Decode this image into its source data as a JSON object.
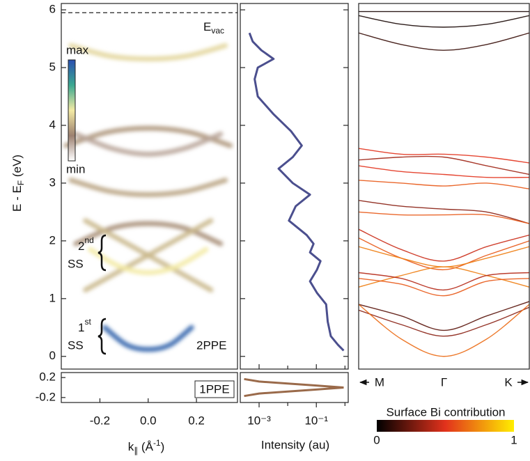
{
  "chart_data": [
    {
      "type": "heatmap",
      "y_label": [
        "E - E",
        "F",
        " (eV)"
      ],
      "x_label": [
        "k",
        "∥",
        " (Å",
        "-1",
        ")"
      ],
      "ylim": [
        -0.22,
        6.11
      ],
      "yticks": [
        0,
        1,
        2,
        3,
        4,
        5,
        6
      ],
      "xlim": [
        -0.36,
        0.37
      ],
      "xticks": [
        -0.2,
        {
          "value": 0,
          "label": "0.0"
        },
        0.2
      ],
      "vacuum_level": 5.95,
      "annotations": {
        "vacuum": [
          "E",
          "vac"
        ],
        "second_ss": [
          "2",
          "nd",
          "SS"
        ],
        "first_ss": [
          "1",
          "st",
          "SS"
        ],
        "mode": "2PPE"
      },
      "colorbar": {
        "max": "max",
        "min": "min",
        "colors": [
          "#ffffff",
          "#9c8070",
          "#f3eaa4",
          "#3aa890",
          "#2a4fb0"
        ]
      },
      "features": [
        {
          "k": [
            -0.32,
            -0.16,
            0,
            0.16,
            0.32
          ],
          "E": [
            5.38,
            5.2,
            5.15,
            5.2,
            5.38
          ],
          "intensity": 0.45
        },
        {
          "k": [
            -0.34,
            -0.17,
            0,
            0.17,
            0.34
          ],
          "E": [
            3.65,
            3.88,
            3.95,
            3.88,
            3.65
          ],
          "intensity": 0.3
        },
        {
          "k": [
            -0.3,
            -0.15,
            0,
            0.15,
            0.3
          ],
          "E": [
            3.85,
            3.6,
            3.5,
            3.6,
            3.85
          ],
          "intensity": 0.18
        },
        {
          "k": [
            -0.32,
            -0.16,
            0,
            0.16,
            0.32
          ],
          "E": [
            3.05,
            2.86,
            2.8,
            2.86,
            3.05
          ],
          "intensity": 0.33
        },
        {
          "k": [
            -0.3,
            -0.15,
            0,
            0.15,
            0.3
          ],
          "E": [
            1.95,
            2.22,
            2.3,
            2.22,
            1.95
          ],
          "intensity": 0.28
        },
        {
          "k": [
            -0.26,
            -0.13,
            0,
            0.13,
            0.26
          ],
          "E": [
            2.35,
            2.05,
            1.75,
            1.45,
            1.15
          ],
          "intensity": 0.38
        },
        {
          "k": [
            -0.26,
            -0.13,
            0,
            0.13,
            0.26
          ],
          "E": [
            1.15,
            1.45,
            1.75,
            2.05,
            2.35
          ],
          "intensity": 0.38
        },
        {
          "k": [
            -0.24,
            -0.12,
            0,
            0.12,
            0.24
          ],
          "E": [
            1.85,
            1.56,
            1.45,
            1.56,
            1.85
          ],
          "intensity": 0.5
        },
        {
          "k": [
            -0.18,
            -0.09,
            0,
            0.09,
            0.18
          ],
          "E": [
            0.5,
            0.2,
            0.12,
            0.2,
            0.5
          ],
          "intensity": 0.95
        }
      ],
      "inset": {
        "label": "1PPE",
        "ylim": [
          -0.3,
          0.3
        ],
        "yticks": [
          0.2,
          -0.2
        ],
        "feature": {
          "k": [
            -0.12,
            0,
            0.12
          ],
          "E": [
            -0.02,
            -0.02,
            -0.02
          ],
          "intensity": 0.85
        }
      }
    },
    {
      "type": "line",
      "x_label": "Intensity (au)",
      "xscale": "log",
      "xlim": [
        0.00022,
        1.3
      ],
      "xticks": [
        {
          "value": 0.001,
          "label": "10⁻³"
        },
        {
          "value": 0.1,
          "label": "10⁻¹"
        }
      ],
      "xminor": [
        0.01,
        1
      ],
      "ylim": [
        -0.22,
        6.11
      ],
      "ytick_marks": [
        0,
        1,
        2,
        3,
        4,
        5,
        6
      ],
      "series": [
        {
          "color": "#4b4f8e",
          "x": [
            0.00046,
            0.0006,
            0.0012,
            0.0032,
            0.0009,
            0.0007,
            0.0009,
            0.0031,
            0.013,
            0.031,
            0.015,
            0.0048,
            0.015,
            0.06,
            0.019,
            0.011,
            0.046,
            0.08,
            0.06,
            0.14,
            0.105,
            0.06,
            0.105,
            0.22,
            0.25,
            0.32,
            0.57,
            0.9
          ],
          "y": [
            5.6,
            5.45,
            5.3,
            5.15,
            5.0,
            4.8,
            4.5,
            4.2,
            3.9,
            3.65,
            3.45,
            3.25,
            3.0,
            2.8,
            2.6,
            2.35,
            2.1,
            1.95,
            1.8,
            1.65,
            1.5,
            1.3,
            1.1,
            0.9,
            0.6,
            0.35,
            0.2,
            0.1
          ]
        }
      ],
      "inset": {
        "ylim": [
          -0.3,
          0.3
        ],
        "series": [
          {
            "color": "#9a6a4a",
            "x": [
              0.0003,
              0.001,
              0.01,
              0.1,
              0.9
            ],
            "y": [
              0.17,
              0.12,
              0.08,
              0.04,
              0.0
            ]
          },
          {
            "color": "#9a6a4a",
            "x": [
              0.0003,
              0.001,
              0.01,
              0.1,
              0.9
            ],
            "y": [
              -0.17,
              -0.12,
              -0.08,
              -0.04,
              0.0
            ]
          }
        ]
      }
    },
    {
      "type": "band_structure",
      "k_points": [
        "M",
        "Γ",
        "K"
      ],
      "xlim": [
        -1,
        1
      ],
      "k": [
        -1,
        -0.5,
        0,
        0.5,
        1
      ],
      "ylim": [
        -0.22,
        6.11
      ],
      "colorbar": {
        "title": "Surface Bi contribution",
        "ticks": [
          0,
          1
        ],
        "colors": [
          "#000000",
          "#e2321c",
          "#ffee00"
        ]
      },
      "bands": [
        {
          "E": [
            5.97,
            5.97,
            5.97,
            5.97,
            5.97
          ],
          "contribution": 0.05
        },
        {
          "E": [
            5.9,
            5.75,
            5.7,
            5.75,
            5.9
          ],
          "contribution": 0.05
        },
        {
          "E": [
            5.6,
            5.4,
            5.3,
            5.4,
            5.6
          ],
          "contribution": 0.12
        },
        {
          "E": [
            3.6,
            3.5,
            3.5,
            3.45,
            3.35
          ],
          "contribution": 0.5
        },
        {
          "E": [
            3.4,
            3.45,
            3.45,
            3.3,
            3.15
          ],
          "contribution": 0.35
        },
        {
          "E": [
            3.3,
            3.2,
            3.15,
            3.1,
            3.1
          ],
          "contribution": 0.5
        },
        {
          "E": [
            3.05,
            3.0,
            2.95,
            3.0,
            2.9
          ],
          "contribution": 0.6
        },
        {
          "E": [
            2.7,
            2.6,
            2.55,
            2.5,
            2.3
          ],
          "contribution": 0.3
        },
        {
          "E": [
            2.5,
            2.45,
            2.45,
            2.45,
            2.3
          ],
          "contribution": 0.6
        },
        {
          "E": [
            2.2,
            1.85,
            1.65,
            1.9,
            2.1
          ],
          "contribution": 0.45
        },
        {
          "E": [
            2.05,
            1.7,
            1.5,
            1.75,
            2.0
          ],
          "contribution": 0.6
        },
        {
          "E": [
            1.9,
            1.7,
            1.55,
            1.7,
            1.9
          ],
          "contribution": 0.7
        },
        {
          "E": [
            1.2,
            1.4,
            1.55,
            1.4,
            1.2
          ],
          "contribution": 0.7
        },
        {
          "E": [
            1.45,
            1.35,
            1.15,
            1.4,
            1.45
          ],
          "contribution": 0.4
        },
        {
          "E": [
            1.35,
            1.25,
            1.05,
            1.3,
            1.35
          ],
          "contribution": 0.6
        },
        {
          "E": [
            0.9,
            0.7,
            0.45,
            0.7,
            0.95
          ],
          "contribution": 0.2
        },
        {
          "E": [
            0.8,
            0.55,
            0.35,
            0.55,
            0.85
          ],
          "contribution": 0.3
        },
        {
          "E": [
            0.9,
            0.3,
            0.0,
            0.3,
            0.9
          ],
          "contribution": 0.65
        }
      ]
    }
  ]
}
